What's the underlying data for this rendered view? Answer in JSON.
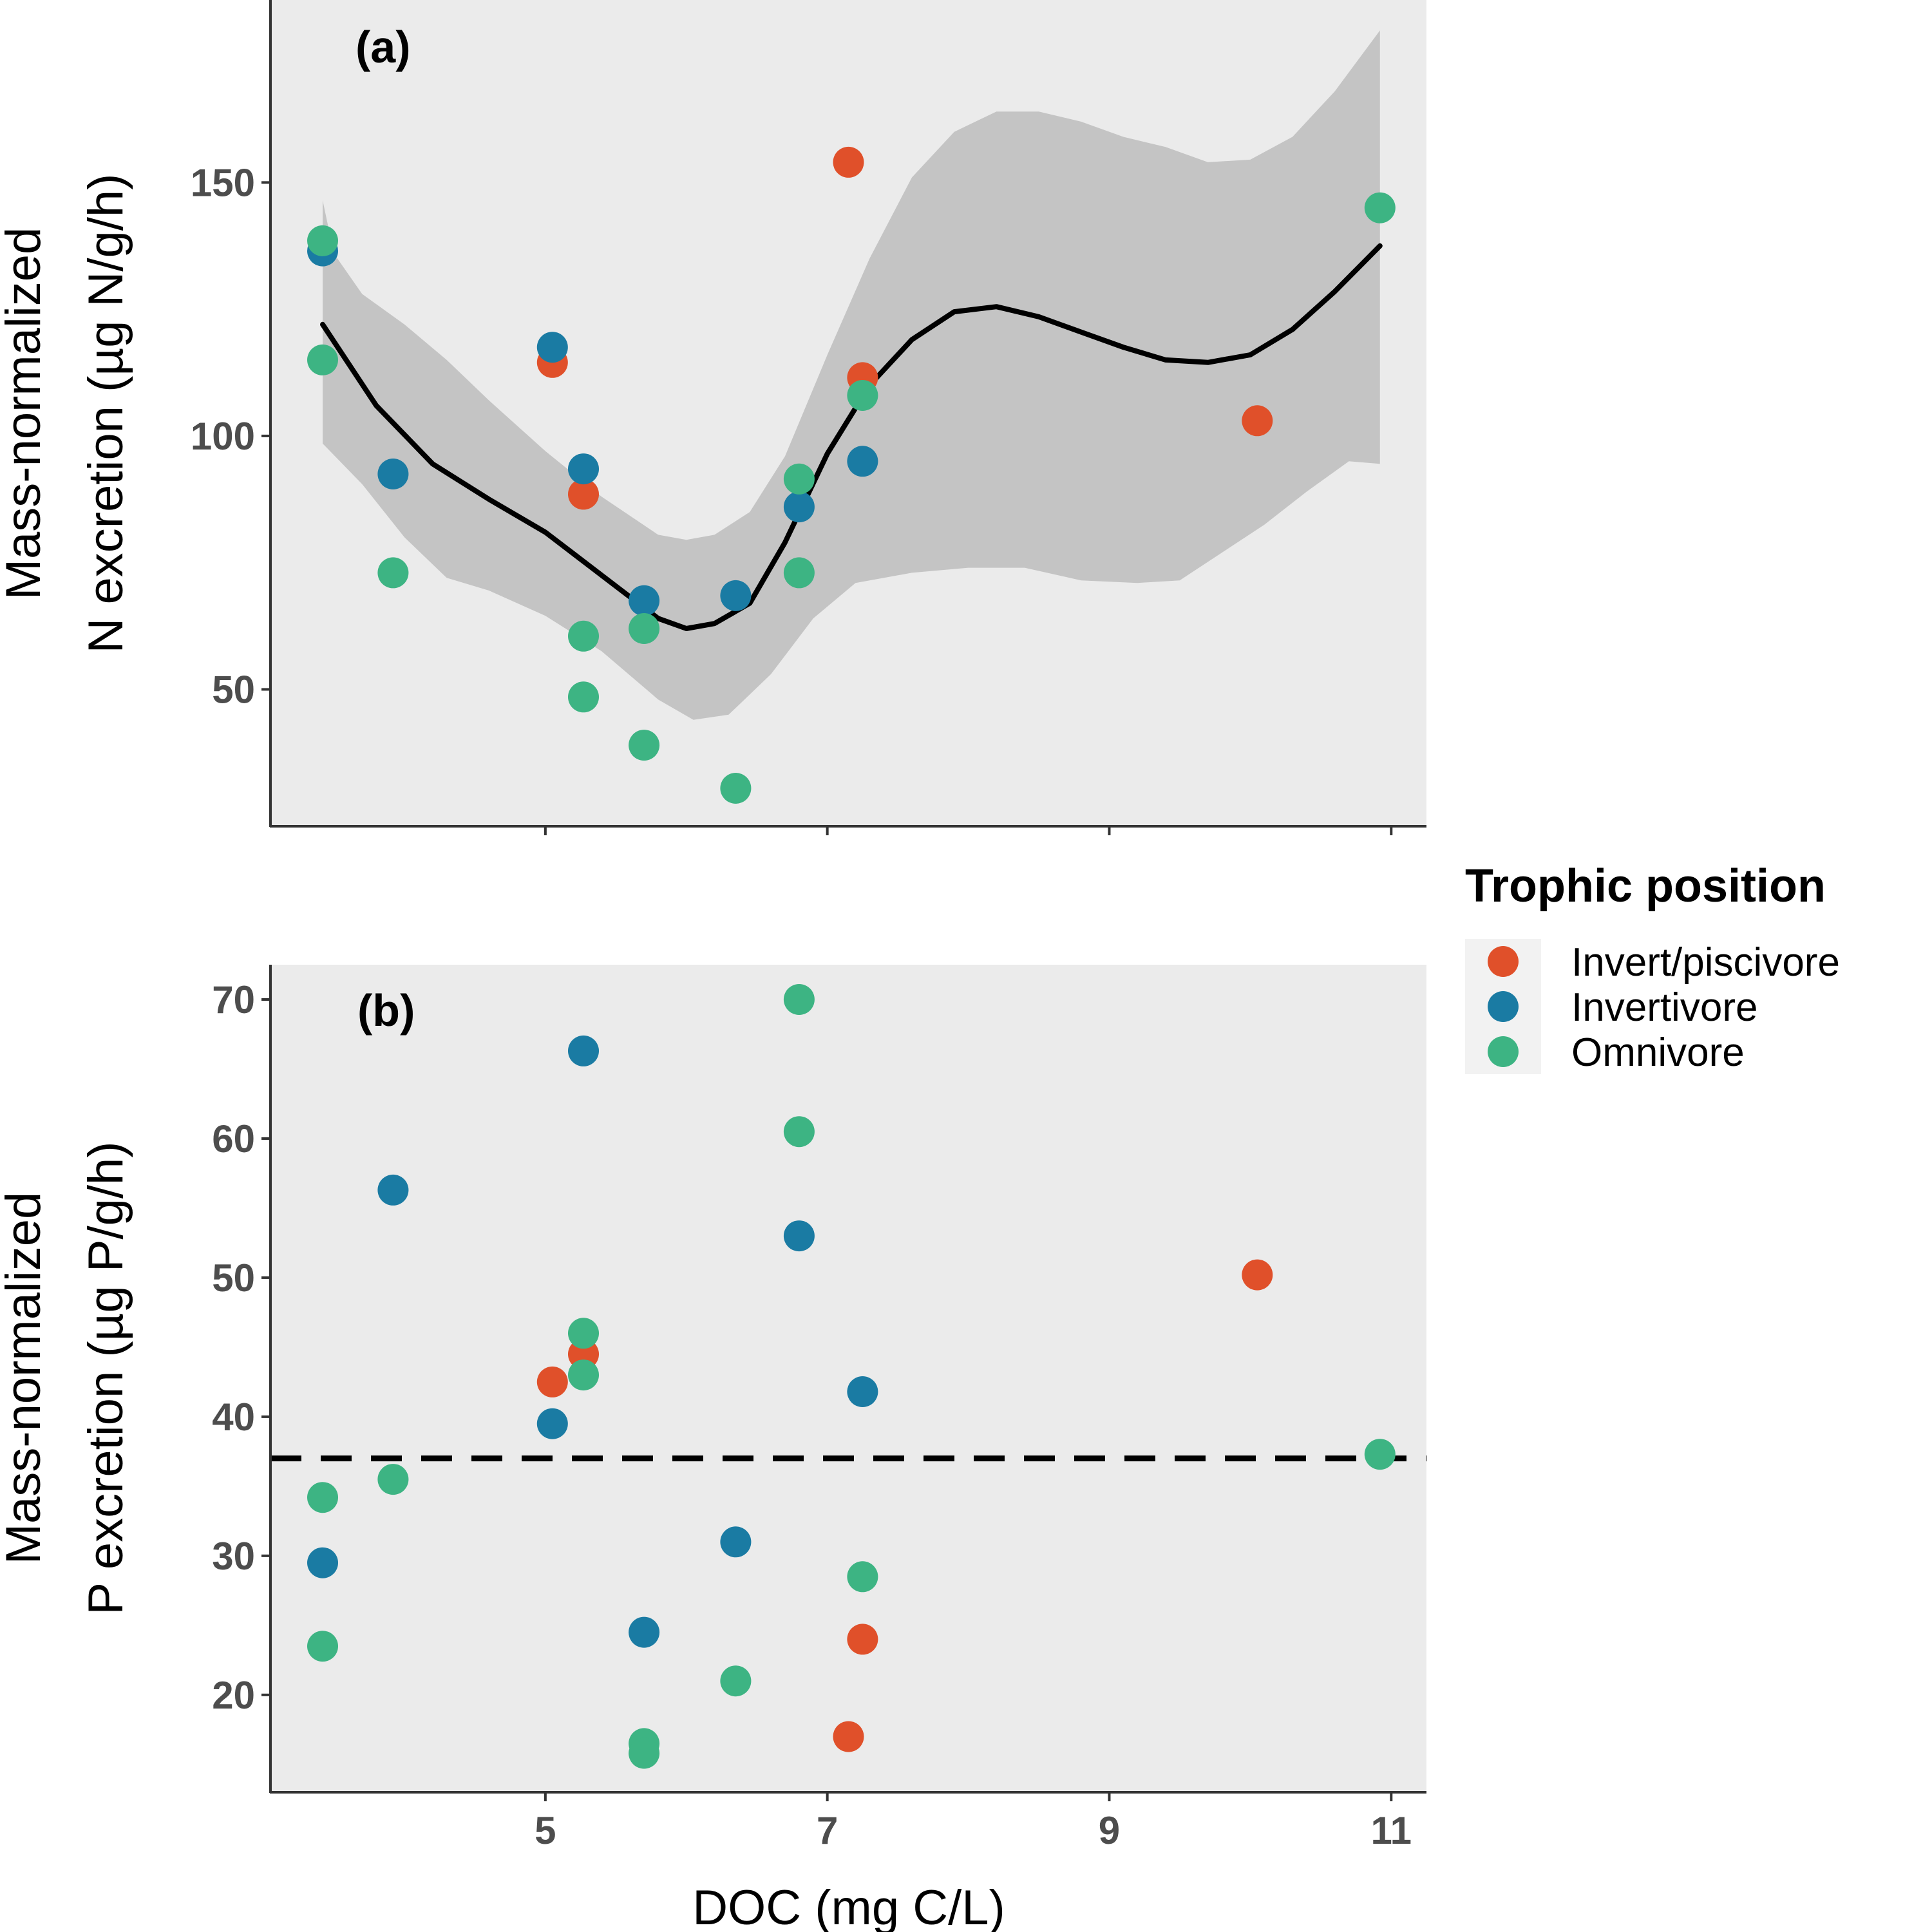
{
  "colors": {
    "panel_bg": "#ebebeb",
    "ribbon": "#c4c4c4",
    "axis": "#333333",
    "line": "#000000",
    "Invert/piscivore": "#e0502a",
    "Invertivore": "#1a7ba3",
    "Omnivore": "#3db483"
  },
  "chart_data": [
    {
      "type": "scatter",
      "panel": "(a)",
      "ylabel_line1": "Mass-normalized",
      "ylabel_line2": "N excretion (µg N/g/h)",
      "xlim": [
        3.05,
        11.25
      ],
      "ylim": [
        23,
        186
      ],
      "yticks": [
        50,
        100,
        150
      ],
      "xticks": [
        5,
        7,
        9,
        11
      ],
      "series": [
        {
          "name": "Invert/piscivore",
          "points": [
            [
              5.05,
              114.5
            ],
            [
              5.27,
              88.5
            ],
            [
              7.15,
              154
            ],
            [
              7.25,
              111.5
            ],
            [
              10.05,
              103
            ]
          ]
        },
        {
          "name": "Invertivore",
          "points": [
            [
              3.42,
              136.5
            ],
            [
              3.92,
              92.5
            ],
            [
              5.05,
              117.5
            ],
            [
              5.27,
              93.5
            ],
            [
              5.7,
              67.5
            ],
            [
              6.35,
              68.5
            ],
            [
              6.8,
              86
            ],
            [
              7.25,
              95
            ]
          ]
        },
        {
          "name": "Omnivore",
          "points": [
            [
              3.42,
              138.5
            ],
            [
              3.42,
              115
            ],
            [
              3.92,
              73
            ],
            [
              5.27,
              60.5
            ],
            [
              5.27,
              48.5
            ],
            [
              5.7,
              62
            ],
            [
              5.7,
              39
            ],
            [
              6.35,
              30.5
            ],
            [
              6.8,
              91.5
            ],
            [
              6.8,
              73
            ],
            [
              7.25,
              108
            ],
            [
              10.92,
              145
            ]
          ]
        }
      ],
      "smooth_fit": [
        [
          3.42,
          122
        ],
        [
          3.8,
          106
        ],
        [
          4.2,
          94.5
        ],
        [
          4.6,
          87.5
        ],
        [
          5.0,
          81
        ],
        [
          5.4,
          72.5
        ],
        [
          5.8,
          64
        ],
        [
          6.0,
          62
        ],
        [
          6.2,
          63
        ],
        [
          6.45,
          67
        ],
        [
          6.7,
          79
        ],
        [
          7.0,
          96.5
        ],
        [
          7.3,
          110
        ],
        [
          7.6,
          119
        ],
        [
          7.9,
          124.5
        ],
        [
          8.2,
          125.5
        ],
        [
          8.5,
          123.5
        ],
        [
          8.8,
          120.5
        ],
        [
          9.1,
          117.5
        ],
        [
          9.4,
          115
        ],
        [
          9.7,
          114.5
        ],
        [
          10.0,
          116
        ],
        [
          10.3,
          121
        ],
        [
          10.6,
          128.5
        ],
        [
          10.92,
          137.5
        ]
      ],
      "confidence_upper": [
        [
          3.42,
          146.5
        ],
        [
          3.5,
          136
        ],
        [
          3.7,
          128
        ],
        [
          4.0,
          122
        ],
        [
          4.3,
          115
        ],
        [
          4.6,
          107
        ],
        [
          5.0,
          97
        ],
        [
          5.4,
          88
        ],
        [
          5.8,
          80.5
        ],
        [
          6.0,
          79.5
        ],
        [
          6.2,
          80.5
        ],
        [
          6.45,
          85
        ],
        [
          6.7,
          96
        ],
        [
          7.0,
          116
        ],
        [
          7.3,
          135
        ],
        [
          7.6,
          151
        ],
        [
          7.9,
          160
        ],
        [
          8.2,
          164
        ],
        [
          8.5,
          164
        ],
        [
          8.8,
          162
        ],
        [
          9.1,
          159
        ],
        [
          9.4,
          157
        ],
        [
          9.7,
          154
        ],
        [
          10.0,
          154.5
        ],
        [
          10.3,
          159
        ],
        [
          10.6,
          168
        ],
        [
          10.92,
          180
        ]
      ],
      "confidence_lower": [
        [
          3.42,
          98.5
        ],
        [
          3.7,
          90.5
        ],
        [
          4.0,
          80
        ],
        [
          4.3,
          72
        ],
        [
          4.6,
          69.5
        ],
        [
          5.0,
          64.5
        ],
        [
          5.4,
          57.5
        ],
        [
          5.8,
          48
        ],
        [
          6.05,
          44
        ],
        [
          6.3,
          45
        ],
        [
          6.6,
          53
        ],
        [
          6.9,
          64
        ],
        [
          7.2,
          71
        ],
        [
          7.6,
          73
        ],
        [
          8.0,
          74
        ],
        [
          8.4,
          74
        ],
        [
          8.8,
          71.5
        ],
        [
          9.2,
          71
        ],
        [
          9.5,
          71.5
        ],
        [
          9.8,
          77
        ],
        [
          10.1,
          82.5
        ],
        [
          10.4,
          89
        ],
        [
          10.7,
          95
        ],
        [
          10.92,
          94.5
        ]
      ]
    },
    {
      "type": "scatter",
      "panel": "(b)",
      "ylabel_line1": "Mass-normalized",
      "ylabel_line2": "P excretion (µg P/g/h)",
      "xlabel": "DOC (mg C/L)",
      "xlim": [
        3.05,
        11.25
      ],
      "ylim": [
        13,
        72.5
      ],
      "yticks": [
        20,
        30,
        40,
        50,
        60,
        70
      ],
      "xticks": [
        5,
        7,
        9,
        11
      ],
      "reference_line_y": 37,
      "series": [
        {
          "name": "Invert/piscivore",
          "points": [
            [
              5.05,
              42.5
            ],
            [
              5.27,
              44.5
            ],
            [
              7.15,
              17
            ],
            [
              7.25,
              24
            ],
            [
              10.05,
              50.2
            ]
          ]
        },
        {
          "name": "Invertivore",
          "points": [
            [
              3.42,
              29.5
            ],
            [
              3.92,
              56.3
            ],
            [
              5.05,
              39.5
            ],
            [
              5.27,
              66.3
            ],
            [
              5.7,
              24.5
            ],
            [
              6.35,
              31
            ],
            [
              6.8,
              53
            ],
            [
              7.25,
              41.8
            ]
          ]
        },
        {
          "name": "Omnivore",
          "points": [
            [
              3.42,
              34.2
            ],
            [
              3.42,
              23.5
            ],
            [
              3.92,
              35.5
            ],
            [
              5.27,
              46
            ],
            [
              5.27,
              43
            ],
            [
              5.7,
              16.5
            ],
            [
              5.7,
              15.8
            ],
            [
              6.35,
              21
            ],
            [
              6.8,
              70
            ],
            [
              6.8,
              60.5
            ],
            [
              7.25,
              28.5
            ],
            [
              10.92,
              37.3
            ]
          ]
        }
      ]
    }
  ],
  "legend": {
    "title": "Trophic position",
    "items": [
      "Invert/piscivore",
      "Invertivore",
      "Omnivore"
    ]
  }
}
